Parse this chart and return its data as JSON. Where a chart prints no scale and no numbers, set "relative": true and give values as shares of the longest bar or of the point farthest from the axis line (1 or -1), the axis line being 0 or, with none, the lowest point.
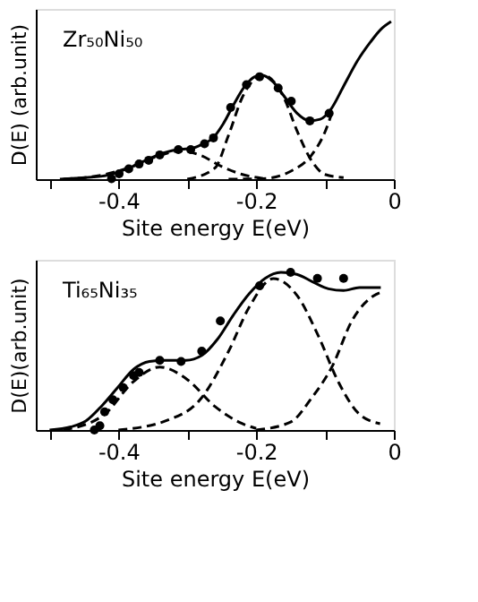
{
  "chart_data": [
    {
      "type": "line",
      "relative": true,
      "annotations": [
        "Zr₅₀Ni₅₀"
      ],
      "xlabel": "Site energy E(eV)",
      "ylabel": "D(E) (arb.unit)",
      "xlim": [
        -0.52,
        0
      ],
      "xticks": [
        {
          "value": -0.5,
          "label": null
        },
        -0.4,
        {
          "value": -0.3,
          "label": null
        },
        -0.2,
        {
          "value": -0.1,
          "label": null
        },
        0
      ],
      "grid": false,
      "series": [
        {
          "line_style": "solid",
          "marker": "none",
          "color": "#000000",
          "x": [
            -0.485,
            -0.447,
            -0.416,
            -0.385,
            -0.355,
            -0.332,
            -0.309,
            -0.294,
            -0.279,
            -0.263,
            -0.248,
            -0.233,
            -0.218,
            -0.202,
            -0.191,
            -0.176,
            -0.16,
            -0.141,
            -0.122,
            -0.107,
            -0.092,
            -0.073,
            -0.053,
            -0.034,
            -0.019,
            -0.004
          ],
          "values": [
            0,
            0.01,
            0.025,
            0.07,
            0.13,
            0.17,
            0.19,
            0.195,
            0.22,
            0.26,
            0.35,
            0.47,
            0.58,
            0.65,
            0.66,
            0.62,
            0.53,
            0.42,
            0.37,
            0.38,
            0.44,
            0.59,
            0.75,
            0.87,
            0.95,
            1.0
          ]
        },
        {
          "type": "scatter",
          "marker": "circle",
          "color": "#000000",
          "x": [
            -0.41,
            -0.399,
            -0.385,
            -0.37,
            -0.356,
            -0.34,
            -0.313,
            -0.295,
            -0.275,
            -0.262,
            -0.237,
            -0.214,
            -0.195,
            -0.168,
            -0.149,
            -0.122,
            -0.094
          ],
          "values": [
            0.003,
            0.034,
            0.065,
            0.096,
            0.12,
            0.154,
            0.188,
            0.188,
            0.225,
            0.262,
            0.455,
            0.6,
            0.65,
            0.578,
            0.495,
            0.37,
            0.418
          ]
        },
        {
          "line_style": "dashed",
          "marker": "none",
          "color": "#000000",
          "x": [
            -0.48,
            -0.42,
            -0.38,
            -0.34,
            -0.31,
            -0.28,
            -0.25,
            -0.22,
            -0.19
          ],
          "values": [
            0,
            0.03,
            0.08,
            0.15,
            0.18,
            0.15,
            0.08,
            0.03,
            0.005
          ]
        },
        {
          "line_style": "dashed",
          "marker": "none",
          "color": "#000000",
          "x": [
            -0.3,
            -0.26,
            -0.24,
            -0.22,
            -0.19,
            -0.16,
            -0.14,
            -0.12,
            -0.1,
            -0.073
          ],
          "values": [
            0,
            0.07,
            0.28,
            0.52,
            0.66,
            0.52,
            0.3,
            0.12,
            0.03,
            0.01
          ]
        },
        {
          "line_style": "dashed",
          "marker": "none",
          "color": "#000000",
          "x": [
            -0.24,
            -0.19,
            -0.15,
            -0.12,
            -0.1,
            -0.09
          ],
          "values": [
            0,
            0.003,
            0.05,
            0.15,
            0.3,
            0.42
          ]
        }
      ]
    },
    {
      "type": "line",
      "relative": true,
      "annotations": [
        "Ti₆₅Ni₃₅"
      ],
      "xlabel": "Site energy E(eV)",
      "ylabel": "D(E)(arb.unit)",
      "xlim": [
        -0.52,
        0
      ],
      "xticks": [
        {
          "value": -0.5,
          "label": null
        },
        -0.4,
        {
          "value": -0.3,
          "label": null
        },
        -0.2,
        {
          "value": -0.1,
          "label": null
        },
        0
      ],
      "grid": false,
      "series": [
        {
          "line_style": "solid",
          "marker": "none",
          "color": "#000000",
          "x": [
            -0.5,
            -0.469,
            -0.447,
            -0.424,
            -0.401,
            -0.378,
            -0.355,
            -0.332,
            -0.302,
            -0.279,
            -0.256,
            -0.233,
            -0.21,
            -0.187,
            -0.164,
            -0.141,
            -0.118,
            -0.095,
            -0.073,
            -0.05,
            -0.019
          ],
          "values": [
            0,
            0.02,
            0.058,
            0.154,
            0.27,
            0.385,
            0.435,
            0.442,
            0.442,
            0.473,
            0.577,
            0.73,
            0.865,
            0.962,
            1.0,
            0.988,
            0.94,
            0.896,
            0.885,
            0.904,
            0.904
          ]
        },
        {
          "type": "scatter",
          "marker": "circle",
          "color": "#000000",
          "x": [
            -0.435,
            -0.427,
            -0.42,
            -0.408,
            -0.393,
            -0.378,
            -0.37,
            -0.34,
            -0.309,
            -0.279,
            -0.252,
            -0.195,
            -0.15,
            -0.111,
            -0.073
          ],
          "values": [
            0,
            0.027,
            0.115,
            0.192,
            0.269,
            0.346,
            0.365,
            0.442,
            0.435,
            0.5,
            0.692,
            0.915,
            1.0,
            0.962,
            0.962
          ]
        },
        {
          "line_style": "dashed",
          "marker": "none",
          "color": "#000000",
          "x": [
            -0.48,
            -0.42,
            -0.38,
            -0.34,
            -0.3,
            -0.26,
            -0.22,
            -0.2
          ],
          "values": [
            0,
            0.1,
            0.3,
            0.4,
            0.32,
            0.15,
            0.04,
            0.01
          ]
        },
        {
          "line_style": "dashed",
          "marker": "none",
          "color": "#000000",
          "x": [
            -0.4,
            -0.33,
            -0.28,
            -0.24,
            -0.21,
            -0.175,
            -0.14,
            -0.11,
            -0.08,
            -0.05,
            -0.02
          ],
          "values": [
            0,
            0.06,
            0.2,
            0.5,
            0.78,
            0.96,
            0.85,
            0.6,
            0.3,
            0.1,
            0.04
          ]
        },
        {
          "line_style": "dashed",
          "marker": "none",
          "color": "#000000",
          "x": [
            -0.2,
            -0.15,
            -0.12,
            -0.09,
            -0.06,
            -0.03,
            -0.015
          ],
          "values": [
            0,
            0.05,
            0.2,
            0.4,
            0.7,
            0.85,
            0.88
          ]
        }
      ]
    }
  ]
}
